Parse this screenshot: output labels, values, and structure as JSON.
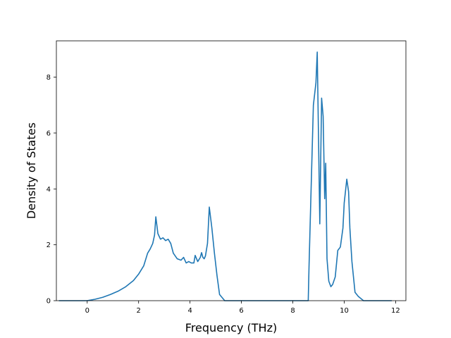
{
  "chart_data": {
    "type": "line",
    "title": "",
    "xlabel": "Frequency (THz)",
    "ylabel": "Density of States",
    "xlim": [
      -1.2,
      12.4
    ],
    "ylim": [
      0,
      9.3
    ],
    "xticks": [
      0,
      2,
      4,
      6,
      8,
      10,
      12
    ],
    "yticks": [
      0,
      2,
      4,
      6,
      8
    ],
    "grid": false,
    "colors": {
      "line": "#1f77b4",
      "axes": "#000000",
      "background": "#ffffff"
    },
    "series": [
      {
        "x": [
          -1.1,
          -0.6,
          0.0,
          0.3,
          0.6,
          0.9,
          1.2,
          1.5,
          1.8,
          2.0,
          2.2,
          2.35,
          2.45,
          2.55,
          2.62,
          2.67,
          2.75,
          2.85,
          2.95,
          3.05,
          3.15,
          3.25,
          3.35,
          3.5,
          3.65,
          3.75,
          3.85,
          3.95,
          4.05,
          4.15,
          4.2,
          4.3,
          4.4,
          4.45,
          4.5,
          4.55,
          4.6,
          4.68,
          4.75,
          4.85,
          4.95,
          5.05,
          5.15,
          5.35,
          5.9,
          6.5,
          7.2,
          8.0,
          8.6,
          8.63,
          8.7,
          8.8,
          8.9,
          8.95,
          9.05,
          9.12,
          9.18,
          9.24,
          9.28,
          9.33,
          9.4,
          9.48,
          9.55,
          9.65,
          9.75,
          9.85,
          9.95,
          10.0,
          10.1,
          10.17,
          10.22,
          10.3,
          10.42,
          10.55,
          10.75,
          11.0,
          11.5,
          11.85
        ],
        "y": [
          0.0,
          0.0,
          0.0,
          0.05,
          0.12,
          0.22,
          0.34,
          0.5,
          0.72,
          0.95,
          1.25,
          1.7,
          1.85,
          2.05,
          2.35,
          3.0,
          2.4,
          2.2,
          2.25,
          2.15,
          2.2,
          2.05,
          1.7,
          1.5,
          1.45,
          1.55,
          1.35,
          1.4,
          1.35,
          1.35,
          1.62,
          1.4,
          1.55,
          1.72,
          1.55,
          1.5,
          1.6,
          2.05,
          3.35,
          2.6,
          1.7,
          0.9,
          0.22,
          0.0,
          0.0,
          0.0,
          0.0,
          0.0,
          0.0,
          1.2,
          3.6,
          7.0,
          7.8,
          8.9,
          2.75,
          7.25,
          6.6,
          3.65,
          4.92,
          1.5,
          0.7,
          0.5,
          0.58,
          0.85,
          1.8,
          1.92,
          2.6,
          3.5,
          4.35,
          3.9,
          2.6,
          1.4,
          0.3,
          0.15,
          0.0,
          0.0,
          0.0,
          0.0
        ]
      }
    ]
  }
}
